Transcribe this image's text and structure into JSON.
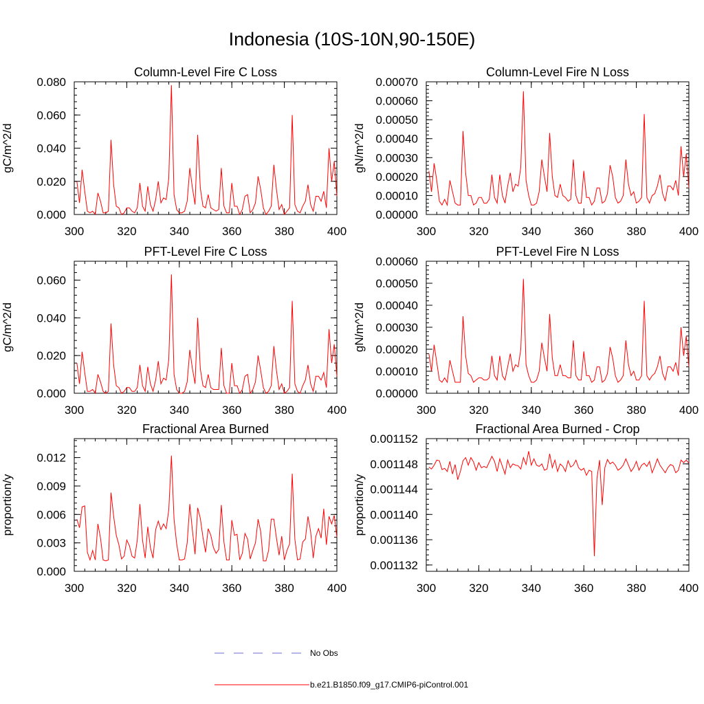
{
  "title": "Indonesia (10S-10N,90-150E)",
  "colors": {
    "model": "#ff0000",
    "obs": "#6b6bd6",
    "axis": "#000000"
  },
  "legend": [
    {
      "label": "No Obs",
      "style": "dashed",
      "color": "#6b6bd6"
    },
    {
      "label": "b.e21.B1850.f09_g17.CMIP6-piControl.001",
      "style": "solid",
      "color": "#ff0000"
    }
  ],
  "chart_data": [
    {
      "type": "line",
      "title": "Column-Level Fire C Loss",
      "ylabel": "gC/m^2/d",
      "xlabel": "",
      "xlim": [
        300,
        400
      ],
      "ylim": [
        0,
        0.08
      ],
      "xticks": [
        300,
        320,
        340,
        360,
        380,
        400
      ],
      "xtick_labels": [
        "300",
        "320",
        "340",
        "360",
        "380",
        "400"
      ],
      "yticks": [
        0,
        0.02,
        0.04,
        0.06,
        0.08
      ],
      "ytick_labels": [
        "0.000",
        "0.020",
        "0.040",
        "0.060",
        "0.080"
      ],
      "series": [
        {
          "name": "b.e21.B1850.f09_g17.CMIP6-piControl.001",
          "x_start": 301,
          "x_step": 1,
          "values": [
            0.02,
            0.007,
            0.027,
            0.014,
            0.002,
            0.001,
            0.002,
            0.0,
            0.013,
            0.008,
            0.001,
            0.001,
            0.002,
            0.045,
            0.018,
            0.005,
            0.004,
            0.0,
            0.001,
            0.004,
            0.004,
            0.002,
            0.001,
            0.004,
            0.019,
            0.005,
            0.002,
            0.017,
            0.006,
            0.002,
            0.009,
            0.02,
            0.007,
            0.01,
            0.009,
            0.022,
            0.078,
            0.012,
            0.003,
            0.001,
            0.001,
            0.002,
            0.008,
            0.028,
            0.016,
            0.006,
            0.048,
            0.016,
            0.005,
            0.004,
            0.012,
            0.004,
            0.003,
            0.002,
            0.003,
            0.028,
            0.005,
            0.001,
            0.001,
            0.019,
            0.005,
            0.005,
            0.0,
            0.003,
            0.011,
            0.012,
            0.001,
            0.003,
            0.007,
            0.023,
            0.015,
            0.004,
            0.0,
            0.002,
            0.005,
            0.03,
            0.015,
            0.003,
            0.006,
            0.0,
            0.002,
            0.004,
            0.06,
            0.006,
            0.002,
            0.001,
            0.005,
            0.008,
            0.018,
            0.006,
            0.002,
            0.011,
            0.011,
            0.008,
            0.014,
            0.004,
            0.04,
            0.02,
            0.032,
            0.011
          ]
        }
      ]
    },
    {
      "type": "line",
      "title": "Column-Level Fire N Loss",
      "ylabel": "gN/m^2/d",
      "xlabel": "",
      "xlim": [
        300,
        400
      ],
      "ylim": [
        0,
        0.0007
      ],
      "xticks": [
        300,
        320,
        340,
        360,
        380,
        400
      ],
      "xtick_labels": [
        "300",
        "320",
        "340",
        "360",
        "380",
        "400"
      ],
      "yticks": [
        0,
        0.0001,
        0.0002,
        0.0003,
        0.0004,
        0.0005,
        0.0006,
        0.0007
      ],
      "ytick_labels": [
        "0.00000",
        "0.00010",
        "0.00020",
        "0.00030",
        "0.00040",
        "0.00050",
        "0.00060",
        "0.00070"
      ],
      "series": [
        {
          "name": "b.e21.B1850.f09_g17.CMIP6-piControl.001",
          "x_start": 301,
          "x_step": 1,
          "values": [
            0.00023,
            0.00012,
            0.00027,
            0.00018,
            7e-05,
            5e-05,
            8e-05,
            5e-05,
            0.00018,
            0.00012,
            6e-05,
            5e-05,
            5e-05,
            0.00044,
            0.00022,
            0.0001,
            0.0001,
            5e-05,
            6e-05,
            9e-05,
            9e-05,
            6e-05,
            6e-05,
            8e-05,
            0.00021,
            9e-05,
            6e-05,
            0.00021,
            0.0001,
            6e-05,
            0.00015,
            0.00022,
            0.00012,
            0.00016,
            0.00015,
            0.00025,
            0.00065,
            0.00018,
            0.0001,
            5e-05,
            5e-05,
            6e-05,
            0.00012,
            0.00029,
            0.0002,
            0.00012,
            0.00043,
            0.0002,
            0.0001,
            9e-05,
            0.00016,
            0.0001,
            9e-05,
            7e-05,
            8e-05,
            0.00029,
            0.0001,
            6e-05,
            6e-05,
            0.00023,
            9e-05,
            9e-05,
            5e-05,
            7e-05,
            0.00014,
            0.00014,
            6e-05,
            7e-05,
            0.00011,
            0.00026,
            0.0002,
            9e-05,
            6e-05,
            7e-05,
            0.0001,
            0.00029,
            0.00016,
            0.0001,
            0.00012,
            6e-05,
            7e-05,
            9e-05,
            0.00053,
            9e-05,
            6e-05,
            0.0001,
            0.00011,
            0.00015,
            0.00021,
            0.00011,
            7e-05,
            0.00015,
            0.00015,
            0.00013,
            0.00018,
            0.0001,
            0.00036,
            0.0002,
            0.00032,
            0.00014
          ]
        }
      ]
    },
    {
      "type": "line",
      "title": "PFT-Level Fire C Loss",
      "ylabel": "gC/m^2/d",
      "xlabel": "",
      "xlim": [
        300,
        400
      ],
      "ylim": [
        0,
        0.07
      ],
      "xticks": [
        300,
        320,
        340,
        360,
        380,
        400
      ],
      "xtick_labels": [
        "300",
        "320",
        "340",
        "360",
        "380",
        "400"
      ],
      "yticks": [
        0,
        0.02,
        0.04,
        0.06
      ],
      "ytick_labels": [
        "0.000",
        "0.020",
        "0.040",
        "0.060"
      ],
      "series": [
        {
          "name": "b.e21.B1850.f09_g17.CMIP6-piControl.001",
          "x_start": 301,
          "x_step": 1,
          "values": [
            0.016,
            0.005,
            0.022,
            0.011,
            0.001,
            0.001,
            0.002,
            0.0,
            0.01,
            0.006,
            0.001,
            0.0,
            0.001,
            0.037,
            0.015,
            0.004,
            0.003,
            0.0,
            0.001,
            0.003,
            0.003,
            0.001,
            0.001,
            0.003,
            0.015,
            0.004,
            0.001,
            0.014,
            0.005,
            0.001,
            0.007,
            0.017,
            0.005,
            0.008,
            0.007,
            0.018,
            0.063,
            0.01,
            0.002,
            0.0,
            0.0,
            0.001,
            0.006,
            0.023,
            0.013,
            0.005,
            0.04,
            0.013,
            0.004,
            0.003,
            0.01,
            0.003,
            0.002,
            0.002,
            0.002,
            0.024,
            0.004,
            0.0,
            0.0,
            0.016,
            0.004,
            0.004,
            0.0,
            0.002,
            0.009,
            0.01,
            0.0,
            0.002,
            0.006,
            0.02,
            0.012,
            0.003,
            0.0,
            0.001,
            0.004,
            0.025,
            0.012,
            0.002,
            0.005,
            0.0,
            0.001,
            0.003,
            0.049,
            0.005,
            0.001,
            0.0,
            0.004,
            0.007,
            0.015,
            0.005,
            0.001,
            0.009,
            0.009,
            0.007,
            0.011,
            0.003,
            0.034,
            0.016,
            0.026,
            0.009
          ]
        }
      ]
    },
    {
      "type": "line",
      "title": "PFT-Level Fire N Loss",
      "ylabel": "gN/m^2/d",
      "xlabel": "",
      "xlim": [
        300,
        400
      ],
      "ylim": [
        0,
        0.0006
      ],
      "xticks": [
        300,
        320,
        340,
        360,
        380,
        400
      ],
      "xtick_labels": [
        "300",
        "320",
        "340",
        "360",
        "380",
        "400"
      ],
      "yticks": [
        0,
        0.0001,
        0.0002,
        0.0003,
        0.0004,
        0.0005,
        0.0006
      ],
      "ytick_labels": [
        "0.00000",
        "0.00010",
        "0.00020",
        "0.00030",
        "0.00040",
        "0.00050",
        "0.00060"
      ],
      "series": [
        {
          "name": "b.e21.B1850.f09_g17.CMIP6-piControl.001",
          "x_start": 301,
          "x_step": 1,
          "values": [
            0.00018,
            0.0001,
            0.00022,
            0.00014,
            6e-05,
            5e-05,
            7e-05,
            5e-05,
            0.00015,
            0.0001,
            5e-05,
            5e-05,
            5e-05,
            0.00035,
            0.00017,
            9e-05,
            8e-05,
            5e-05,
            6e-05,
            7e-05,
            7e-05,
            6e-05,
            6e-05,
            7e-05,
            0.00017,
            8e-05,
            6e-05,
            0.00017,
            8e-05,
            6e-05,
            0.00012,
            0.00018,
            0.0001,
            0.00013,
            0.00012,
            0.0002,
            0.00052,
            0.00013,
            8e-05,
            5e-05,
            5e-05,
            6e-05,
            0.0001,
            0.00023,
            0.00016,
            0.0001,
            0.00036,
            0.00016,
            8e-05,
            8e-05,
            0.00013,
            8e-05,
            8e-05,
            7e-05,
            7e-05,
            0.00024,
            8e-05,
            6e-05,
            6e-05,
            0.00019,
            8e-05,
            8e-05,
            5e-05,
            6e-05,
            0.00012,
            0.00012,
            5e-05,
            6e-05,
            9e-05,
            0.00021,
            0.00016,
            8e-05,
            5e-05,
            6e-05,
            8e-05,
            0.00024,
            0.00013,
            8e-05,
            0.0001,
            6e-05,
            6e-05,
            8e-05,
            0.00042,
            8e-05,
            6e-05,
            8e-05,
            9e-05,
            0.00012,
            0.00017,
            9e-05,
            6e-05,
            0.00012,
            0.00012,
            0.0001,
            0.00014,
            8e-05,
            0.0003,
            0.00017,
            0.00026,
            0.00012
          ]
        }
      ]
    },
    {
      "type": "line",
      "title": "Fractional Area Burned",
      "ylabel": "proportion/y",
      "xlabel": "",
      "xlim": [
        300,
        400
      ],
      "ylim": [
        0,
        0.014
      ],
      "xticks": [
        300,
        320,
        340,
        360,
        380,
        400
      ],
      "xtick_labels": [
        "300",
        "320",
        "340",
        "360",
        "380",
        "400"
      ],
      "yticks": [
        0,
        0.003,
        0.006,
        0.009,
        0.012
      ],
      "ytick_labels": [
        "0.000",
        "0.003",
        "0.006",
        "0.009",
        "0.012"
      ],
      "series": [
        {
          "name": "b.e21.B1850.f09_g17.CMIP6-piControl.001",
          "x_start": 301,
          "x_step": 1,
          "values": [
            0.0055,
            0.0046,
            0.0068,
            0.0069,
            0.002,
            0.0012,
            0.0022,
            0.0012,
            0.005,
            0.0035,
            0.0012,
            0.0011,
            0.0012,
            0.0083,
            0.0058,
            0.0038,
            0.0028,
            0.0013,
            0.0016,
            0.0033,
            0.0027,
            0.0016,
            0.0014,
            0.0033,
            0.0071,
            0.0033,
            0.0014,
            0.0047,
            0.0025,
            0.0014,
            0.0044,
            0.0053,
            0.0044,
            0.005,
            0.0045,
            0.0065,
            0.0122,
            0.0055,
            0.0029,
            0.0012,
            0.0012,
            0.0013,
            0.003,
            0.0071,
            0.0043,
            0.0018,
            0.0067,
            0.0056,
            0.0036,
            0.002,
            0.0045,
            0.0038,
            0.0025,
            0.0019,
            0.0023,
            0.007,
            0.0031,
            0.0012,
            0.0012,
            0.0054,
            0.0038,
            0.0039,
            0.0012,
            0.0019,
            0.004,
            0.0034,
            0.0013,
            0.0022,
            0.003,
            0.0055,
            0.0042,
            0.0011,
            0.0011,
            0.0022,
            0.0055,
            0.0055,
            0.0035,
            0.0017,
            0.0037,
            0.0012,
            0.0022,
            0.0029,
            0.0103,
            0.0034,
            0.0012,
            0.0013,
            0.0031,
            0.0034,
            0.0058,
            0.0042,
            0.0014,
            0.0037,
            0.0045,
            0.0035,
            0.0066,
            0.0028,
            0.0058,
            0.005,
            0.0059,
            0.0036
          ]
        }
      ]
    },
    {
      "type": "line",
      "title": "Fractional Area Burned - Crop",
      "ylabel": "proportion/y",
      "xlabel": "",
      "xlim": [
        300,
        400
      ],
      "ylim": [
        0.001131,
        0.001152
      ],
      "xticks": [
        300,
        320,
        340,
        360,
        380,
        400
      ],
      "xtick_labels": [
        "300",
        "320",
        "340",
        "360",
        "380",
        "400"
      ],
      "yticks": [
        0.001132,
        0.001136,
        0.00114,
        0.001144,
        0.001148,
        0.001152
      ],
      "ytick_labels": [
        "0.001132",
        "0.001136",
        "0.001140",
        "0.001144",
        "0.001148",
        "0.001152"
      ],
      "series": [
        {
          "name": "b.e21.B1850.f09_g17.CMIP6-piControl.001",
          "x_start": 301,
          "x_step": 1,
          "values": [
            0.0011475,
            0.0011472,
            0.0011478,
            0.0011486,
            0.0011485,
            0.0011471,
            0.0011473,
            0.0011468,
            0.0011484,
            0.0011464,
            0.0011479,
            0.0011455,
            0.0011468,
            0.0011485,
            0.001149,
            0.0011478,
            0.001149,
            0.0011483,
            0.001147,
            0.0011482,
            0.0011474,
            0.0011476,
            0.0011474,
            0.0011483,
            0.0011492,
            0.0011484,
            0.0011468,
            0.0011488,
            0.0011476,
            0.0011464,
            0.0011486,
            0.0011474,
            0.001148,
            0.0011478,
            0.0011477,
            0.0011472,
            0.001149,
            0.0011479,
            0.00115,
            0.0011478,
            0.0011488,
            0.0011478,
            0.0011476,
            0.001148,
            0.001147,
            0.0011472,
            0.0011496,
            0.0011474,
            0.0011486,
            0.0011468,
            0.001148,
            0.0011476,
            0.0011468,
            0.0011485,
            0.0011475,
            0.0011478,
            0.0011486,
            0.0011474,
            0.001147,
            0.0011473,
            0.0011462,
            0.001147,
            0.0011468,
            0.0011334,
            0.0011457,
            0.0011486,
            0.0011415,
            0.0011474,
            0.0011487,
            0.001148,
            0.0011483,
            0.0011478,
            0.001147,
            0.0011473,
            0.0011478,
            0.0011488,
            0.0011478,
            0.0011468,
            0.0011474,
            0.0011484,
            0.001147,
            0.0011478,
            0.0011481,
            0.0011476,
            0.0011484,
            0.0011466,
            0.0011476,
            0.0011488,
            0.0011478,
            0.0011472,
            0.0011466,
            0.0011474,
            0.0011479,
            0.0011477,
            0.0011466,
            0.001147,
            0.0011486,
            0.0011482,
            0.0011486,
            0.0011481
          ]
        }
      ]
    }
  ]
}
